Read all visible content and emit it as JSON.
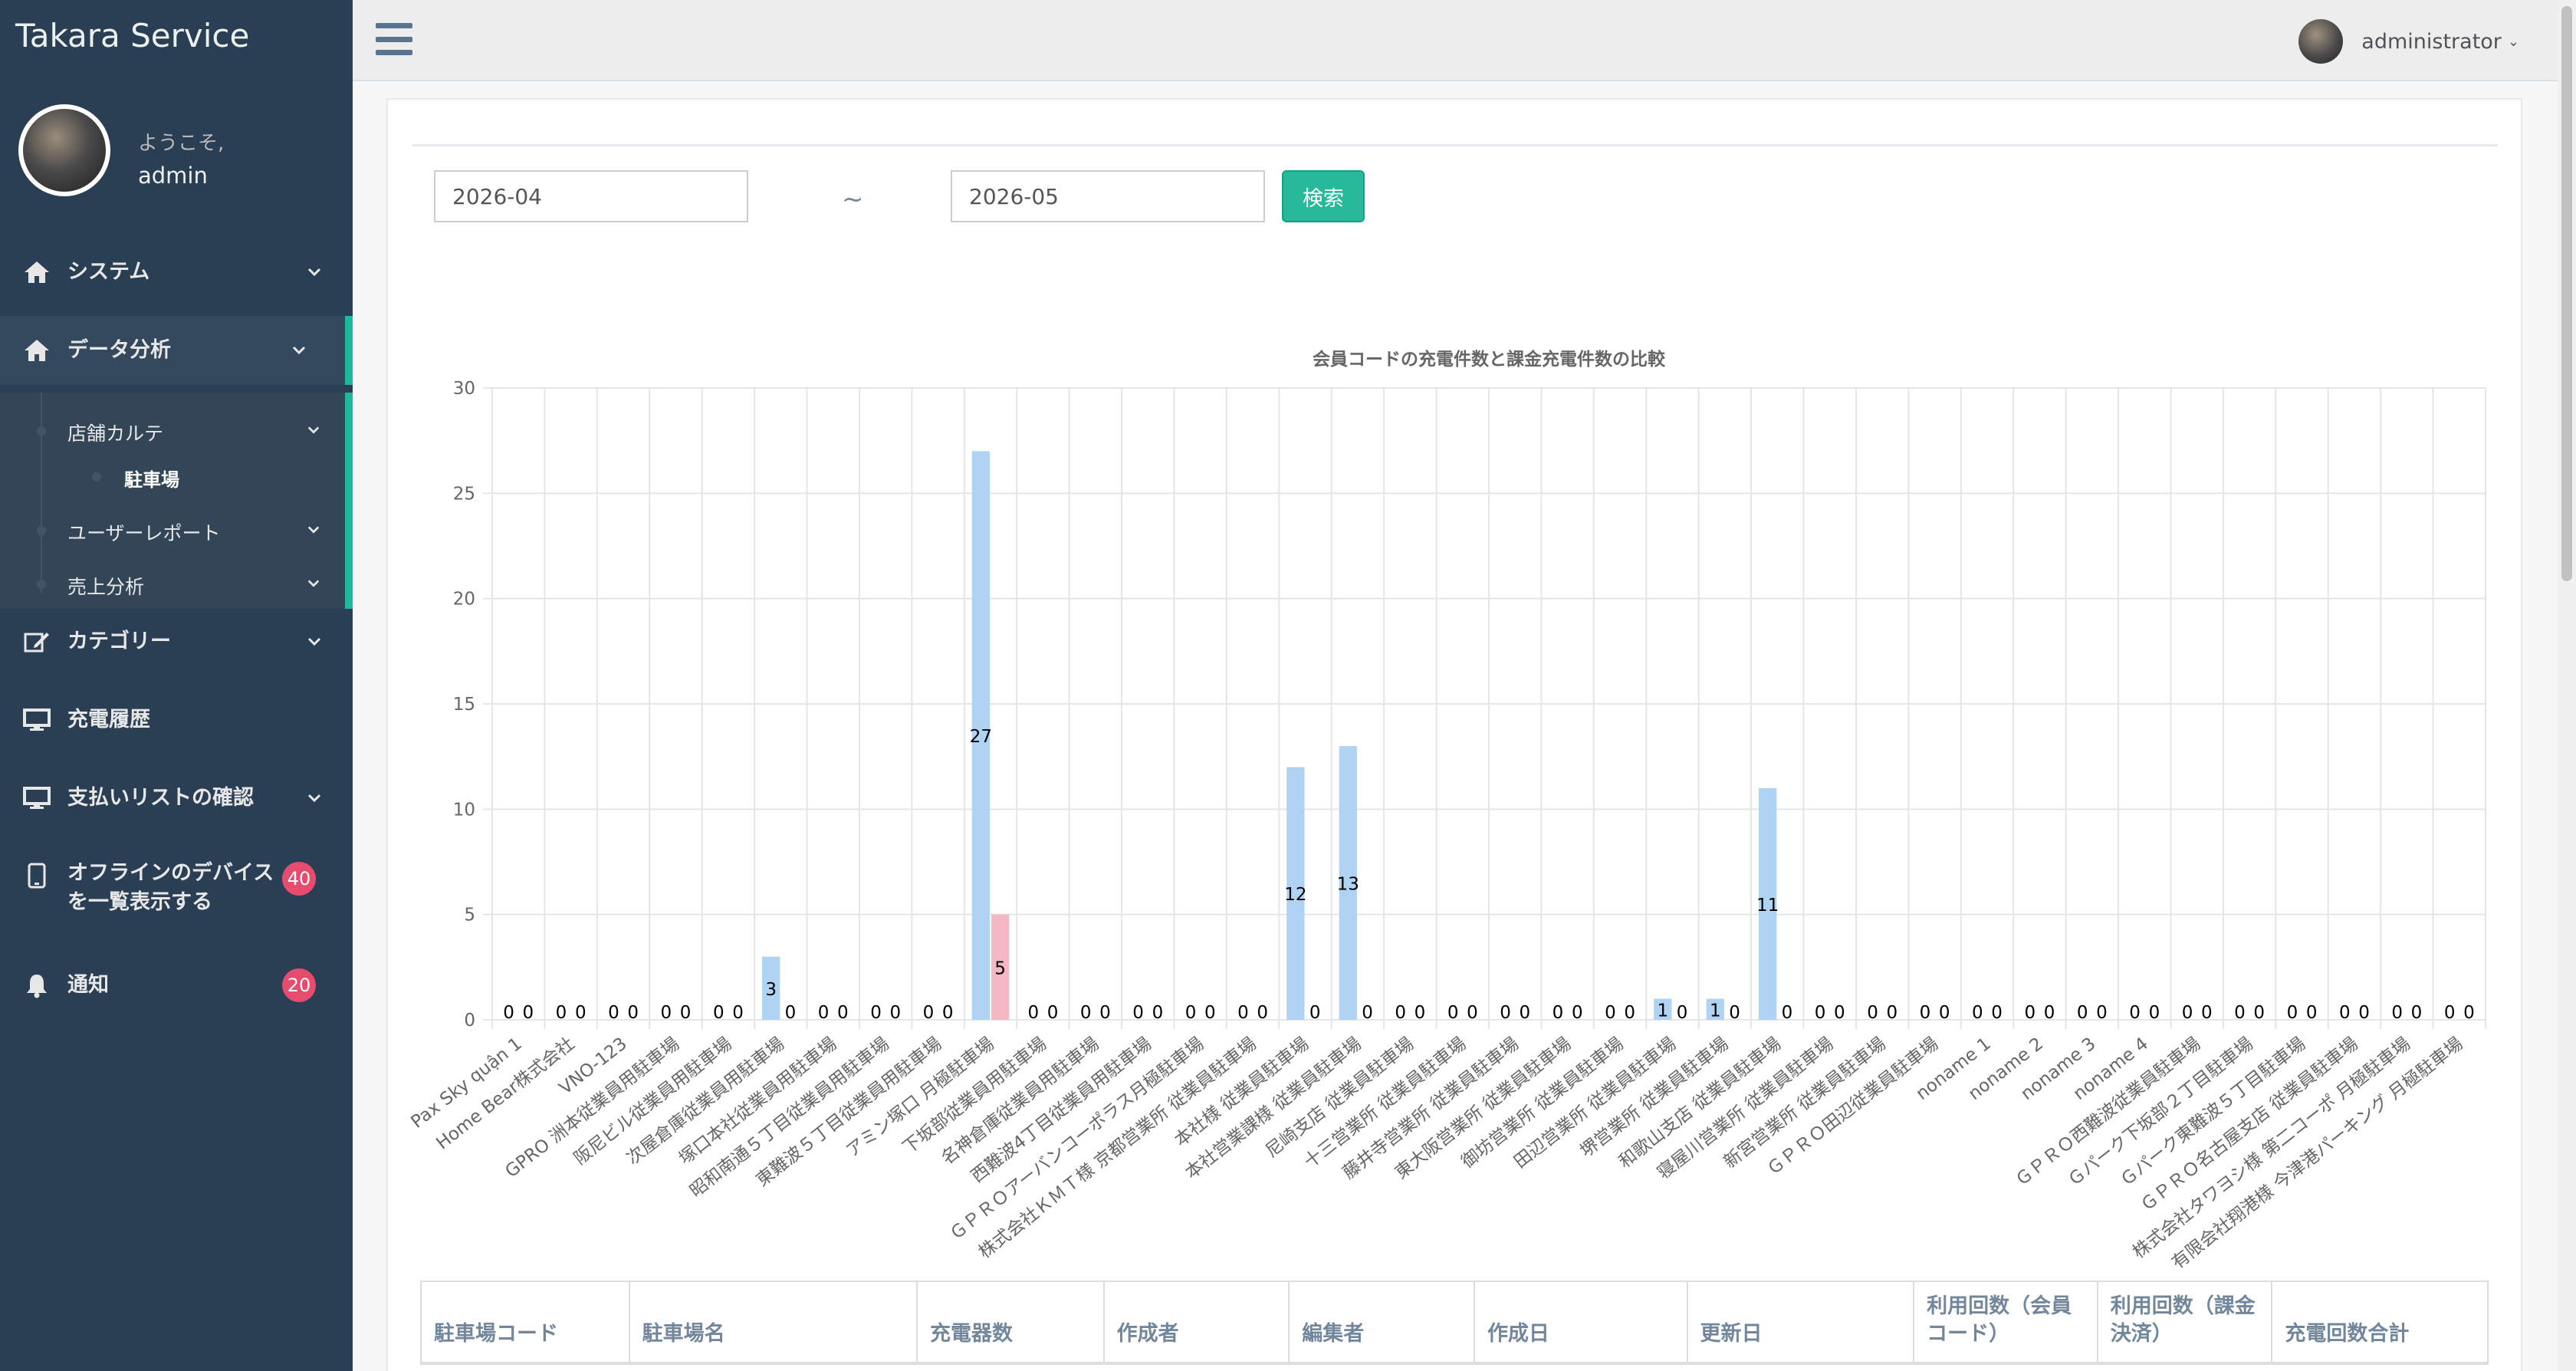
{
  "app": {
    "brand": "Takara Service"
  },
  "profile": {
    "welcome": "ようこそ,",
    "name": "admin"
  },
  "sidebar": {
    "menu": [
      {
        "label": "システム",
        "icon": "home-icon"
      },
      {
        "label": "データ分析",
        "icon": "home-icon"
      },
      {
        "label": "カテゴリー",
        "icon": "edit-icon"
      },
      {
        "label": "充電履歴",
        "icon": "desktop-icon"
      },
      {
        "label": "支払いリストの確認",
        "icon": "desktop-icon"
      },
      {
        "label_line1": "オフラインのデバイス",
        "label_line2": "を一覧表示する",
        "icon": "tablet-icon",
        "badge": "40"
      },
      {
        "label": "通知",
        "icon": "bell-icon",
        "badge": "20"
      }
    ],
    "submenu": {
      "store": "店舗カルテ",
      "parking": "駐車場",
      "user_report": "ユーザーレポート",
      "sales": "売上分析"
    }
  },
  "topnav": {
    "user": "administrator"
  },
  "filter": {
    "from": "2026-04",
    "to": "2026-05",
    "separator": "~",
    "search_label": "検索"
  },
  "chart_data": {
    "type": "bar",
    "title": "会員コードの充電件数と課金充電件数の比較",
    "ylim": [
      0,
      30
    ],
    "yticks": [
      0,
      5,
      10,
      15,
      20,
      25,
      30
    ],
    "categories": [
      "Pax Sky quận 1",
      "Home Bear株式会社",
      "VNO-123",
      "GPRO 洲本従業員用駐車場",
      "阪尼ビル従業員用駐車場",
      "次屋倉庫従業員用駐車場",
      "塚口本社従業員用駐車場",
      "昭和南通５丁目従業員用駐車場",
      "東難波５丁目従業員用駐車場",
      "アミン塚口 月極駐車場",
      "下坂部従業員用駐車場",
      "名神倉庫従業員用駐車場",
      "西難波4丁目従業員用駐車場",
      "ＧＰＲＯアーバンコーポラス月極駐車場",
      "株式会社ＫＭＴ様 京都営業所 従業員駐車場",
      "本社様 従業員駐車場",
      "本社営業課様 従業員駐車場",
      "尼崎支店 従業員駐車場",
      "十三営業所 従業員駐車場",
      "藤井寺営業所 従業員駐車場",
      "東大阪営業所 従業員駐車場",
      "御坊営業所 従業員駐車場",
      "田辺営業所 従業員駐車場",
      "堺営業所 従業員駐車場",
      "和歌山支店 従業員駐車場",
      "寝屋川営業所 従業員駐車場",
      "新宮営業所 従業員駐車場",
      "ＧＰＲＯ田辺従業員駐車場",
      "noname 1",
      "noname 2",
      "noname 3",
      "noname 4",
      "ＧＰＲＯ西難波従業員駐車場",
      "Ｇパーク下坂部２丁目駐車場",
      "Ｇパーク東難波５丁目駐車場",
      "ＧＰＲＯ名古屋支店 従業員駐車場",
      "株式会社タワヨシ様 第二コーポ 月極駐車場",
      "有限会社翔港様 今津港パーキング 月極駐車場"
    ],
    "series": [
      {
        "name": "利用回数（会員コード）",
        "color": "#b0d2f3",
        "values": [
          0,
          0,
          0,
          0,
          0,
          0,
          0,
          0,
          0,
          27,
          0,
          0,
          0,
          0,
          0,
          12,
          13,
          0,
          0,
          0,
          0,
          0,
          1,
          1,
          11,
          0,
          0,
          0,
          0,
          0,
          0,
          0,
          0,
          0,
          0,
          0,
          0,
          0
        ]
      },
      {
        "name": "利用回数（課金決済）",
        "color": "#f5b8c3",
        "values": [
          0,
          0,
          0,
          0,
          0,
          0,
          0,
          0,
          0,
          5,
          0,
          0,
          0,
          0,
          0,
          0,
          0,
          0,
          0,
          0,
          0,
          0,
          0,
          0,
          0,
          0,
          0,
          0,
          0,
          0,
          0,
          0,
          0,
          0,
          0,
          0,
          0,
          0
        ]
      }
    ],
    "extra_bar": {
      "category_index": 5,
      "value": 3
    },
    "grid": true,
    "legend": "bottom"
  },
  "table": {
    "headers": [
      "駐車場コード",
      "駐車場名",
      "充電器数",
      "作成者",
      "編集者",
      "作成日",
      "更新日",
      "利用回数（会員コード）",
      "利用回数（課金決済）",
      "充電回数合計"
    ]
  }
}
